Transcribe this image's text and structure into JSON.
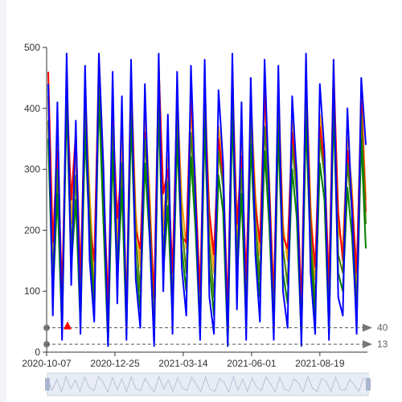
{
  "chart_data": {
    "type": "line",
    "y_ticks": [
      "0",
      "100",
      "200",
      "300",
      "400",
      "500"
    ],
    "ylim": [
      0,
      500
    ],
    "x_tick_labels": [
      "2020-10-07",
      "2020-12-25",
      "2021-03-14",
      "2021-06-01",
      "2021-08-19"
    ],
    "x_start": "2020-10-07",
    "x_end": "2021-10-13",
    "grid": false,
    "legend": "none",
    "series": [
      {
        "color": "#ff9900",
        "values": [
          420,
          150,
          380,
          60,
          470,
          210,
          330,
          90,
          440,
          260,
          120,
          490,
          300,
          40,
          410,
          180,
          350,
          80,
          460,
          230,
          140,
          390,
          270,
          60,
          480,
          200,
          320,
          110,
          430,
          250,
          170,
          400,
          280,
          70,
          450,
          220,
          130,
          370,
          310,
          50,
          470,
          190,
          340,
          100,
          420,
          260,
          160,
          410,
          290,
          80,
          440,
          210,
          150,
          380,
          300,
          60,
          460,
          240,
          120,
          390,
          330,
          90,
          480,
          200,
          170,
          350,
          270,
          110,
          430,
          250
        ]
      },
      {
        "color": "#ff0000",
        "values": [
          460,
          180,
          330,
          100,
          430,
          250,
          360,
          120,
          410,
          210,
          150,
          470,
          280,
          80,
          390,
          220,
          310,
          60,
          450,
          200,
          170,
          360,
          240,
          90,
          470,
          260,
          300,
          130,
          420,
          190,
          180,
          430,
          260,
          100,
          410,
          230,
          160,
          350,
          290,
          70,
          440,
          210,
          320,
          120,
          390,
          240,
          180,
          430,
          270,
          90,
          420,
          190,
          170,
          360,
          280,
          80,
          450,
          220,
          140,
          370,
          310,
          110,
          460,
          230,
          150,
          330,
          250,
          130,
          410,
          230
        ]
      },
      {
        "color": "#4d7f00",
        "values": [
          380,
          120,
          300,
          40,
          450,
          170,
          290,
          60,
          400,
          230,
          80,
          460,
          250,
          20,
          370,
          140,
          310,
          50,
          420,
          190,
          100,
          350,
          230,
          30,
          440,
          160,
          280,
          70,
          390,
          210,
          130,
          360,
          240,
          40,
          410,
          180,
          90,
          330,
          270,
          20,
          430,
          150,
          300,
          60,
          380,
          220,
          120,
          370,
          250,
          50,
          400,
          170,
          110,
          340,
          260,
          30,
          420,
          200,
          80,
          350,
          290,
          50,
          440,
          160,
          130,
          310,
          230,
          70,
          390,
          210
        ]
      },
      {
        "color": "#008000",
        "values": [
          350,
          90,
          260,
          30,
          410,
          140,
          250,
          40,
          360,
          190,
          60,
          420,
          210,
          10,
          330,
          110,
          270,
          30,
          380,
          150,
          70,
          310,
          190,
          20,
          400,
          130,
          240,
          50,
          350,
          170,
          100,
          320,
          200,
          30,
          370,
          140,
          60,
          290,
          230,
          10,
          390,
          120,
          260,
          40,
          340,
          180,
          90,
          330,
          210,
          30,
          360,
          130,
          80,
          300,
          220,
          20,
          380,
          160,
          60,
          310,
          250,
          30,
          400,
          130,
          100,
          270,
          190,
          50,
          350,
          170
        ]
      },
      {
        "color": "#0000ff",
        "values": [
          440,
          60,
          410,
          20,
          490,
          110,
          380,
          30,
          470,
          150,
          50,
          490,
          300,
          10,
          460,
          80,
          420,
          20,
          480,
          120,
          40,
          440,
          200,
          10,
          490,
          100,
          390,
          30,
          460,
          140,
          60,
          470,
          250,
          20,
          480,
          90,
          30,
          430,
          310,
          10,
          490,
          70,
          410,
          20,
          450,
          160,
          50,
          480,
          260,
          20,
          470,
          100,
          40,
          420,
          290,
          10,
          490,
          130,
          30,
          440,
          330,
          20,
          480,
          90,
          60,
          400,
          230,
          30,
          450,
          340
        ]
      }
    ],
    "mark_lines": [
      {
        "value": 40,
        "label": "40"
      },
      {
        "value": 13,
        "label": "13"
      }
    ],
    "mark_point": {
      "color": "#ff0000",
      "value": 40
    },
    "zoom_slider": {
      "start": 0,
      "end": 100
    }
  }
}
